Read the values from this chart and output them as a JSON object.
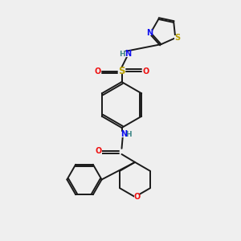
{
  "background_color": "#efefef",
  "bond_color": "#1a1a1a",
  "colors": {
    "N": "#1010ee",
    "O": "#ee1010",
    "S": "#b8a000",
    "H": "#408888",
    "C": "#1a1a1a"
  }
}
